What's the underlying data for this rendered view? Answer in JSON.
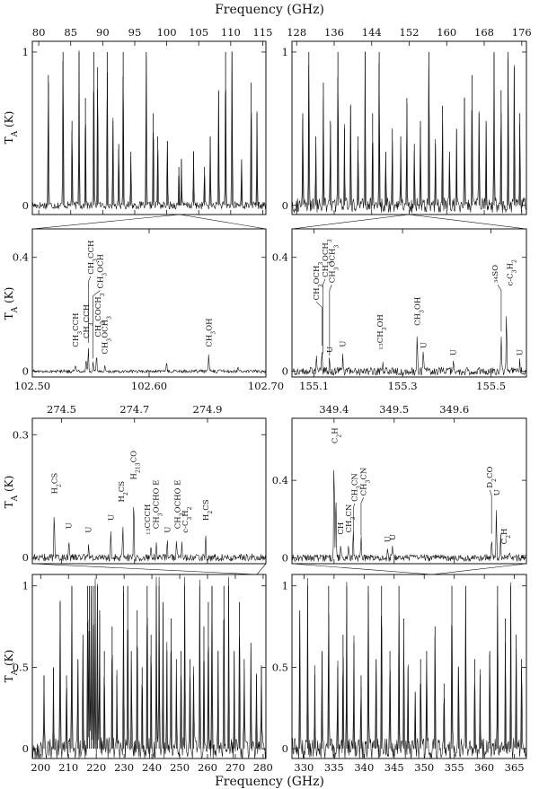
{
  "figure": {
    "top_axis_label": "Frequency (GHz)",
    "bottom_axis_label": "Frequency (GHz)",
    "ylabel": "T",
    "ylabel_sub": "A",
    "ylabel_unit": " (K)"
  },
  "chart_data": [
    {
      "id": "p1",
      "type": "line",
      "title": "",
      "xlabel": "Frequency (GHz)",
      "ylabel": "TA (K)",
      "xlim": [
        79,
        115.5
      ],
      "ylim": [
        -0.06,
        1.07
      ],
      "xticks": [
        80,
        85,
        90,
        95,
        100,
        105,
        110,
        115
      ],
      "yticks": [
        0,
        1
      ],
      "tick_labels_side": "top",
      "peaks": [
        [
          81.5,
          0.85
        ],
        [
          83.8,
          1.0
        ],
        [
          85.2,
          0.55
        ],
        [
          86.3,
          1.0
        ],
        [
          87.3,
          0.7
        ],
        [
          88.6,
          1.0
        ],
        [
          89.2,
          0.9
        ],
        [
          90.7,
          1.0
        ],
        [
          91.6,
          0.55
        ],
        [
          92.5,
          0.4
        ],
        [
          93.2,
          1.0
        ],
        [
          94.4,
          0.35
        ],
        [
          96.8,
          1.0
        ],
        [
          97.9,
          0.6
        ],
        [
          98.6,
          0.45
        ],
        [
          100.1,
          0.42
        ],
        [
          101.9,
          0.25
        ],
        [
          102.3,
          0.3
        ],
        [
          104.2,
          0.35
        ],
        [
          105.9,
          0.25
        ],
        [
          106.8,
          0.45
        ],
        [
          108.1,
          0.75
        ],
        [
          109.2,
          1.0
        ],
        [
          110.2,
          1.0
        ],
        [
          111.7,
          0.3
        ],
        [
          113.2,
          0.8
        ],
        [
          114.1,
          0.6
        ]
      ],
      "noise": 0.025
    },
    {
      "id": "p2",
      "type": "line",
      "title": "",
      "xlabel": "Frequency (GHz)",
      "ylabel": "",
      "xlim": [
        127,
        177
      ],
      "ylim": [
        -0.06,
        1.07
      ],
      "xticks": [
        128,
        136,
        144,
        152,
        160,
        168,
        176
      ],
      "yticks": [
        0,
        1
      ],
      "tick_labels_side": "top",
      "peaks": [
        [
          129.3,
          0.6
        ],
        [
          130.6,
          1.0
        ],
        [
          132.1,
          0.45
        ],
        [
          133.7,
          0.8
        ],
        [
          135.2,
          0.55
        ],
        [
          136.8,
          1.0
        ],
        [
          138.2,
          0.5
        ],
        [
          139.5,
          0.65
        ],
        [
          141.1,
          0.45
        ],
        [
          142.6,
          1.0
        ],
        [
          144.2,
          0.6
        ],
        [
          145.6,
          1.0
        ],
        [
          147.0,
          0.35
        ],
        [
          148.4,
          0.5
        ],
        [
          150.2,
          0.45
        ],
        [
          151.5,
          0.7
        ],
        [
          153.1,
          0.4
        ],
        [
          154.4,
          0.55
        ],
        [
          156.2,
          1.0
        ],
        [
          157.6,
          0.4
        ],
        [
          159.1,
          0.65
        ],
        [
          160.6,
          0.35
        ],
        [
          162.1,
          0.5
        ],
        [
          163.8,
          0.7
        ],
        [
          165.4,
          0.85
        ],
        [
          166.9,
          0.6
        ],
        [
          168.4,
          0.55
        ],
        [
          170.1,
          1.0
        ],
        [
          171.6,
          0.75
        ],
        [
          173.1,
          1.0
        ],
        [
          174.4,
          0.9
        ],
        [
          175.6,
          0.6
        ]
      ],
      "noise": 0.05
    },
    {
      "id": "p3",
      "type": "line",
      "title": "",
      "xlabel": "",
      "ylabel": "TA (K)",
      "xlim": [
        102.5,
        102.7
      ],
      "ylim": [
        -0.02,
        0.5
      ],
      "xticks": [
        102.5,
        102.6,
        102.7
      ],
      "yticks": [
        0,
        0.4
      ],
      "tick_labels_side": "bottom",
      "peaks": [
        [
          102.537,
          0.025
        ],
        [
          102.546,
          0.04
        ],
        [
          102.548,
          0.09
        ],
        [
          102.552,
          0.035
        ],
        [
          102.555,
          0.06
        ],
        [
          102.562,
          0.02
        ],
        [
          102.615,
          0.03
        ],
        [
          102.651,
          0.06
        ],
        [
          102.676,
          0.015
        ]
      ],
      "noise": 0.006,
      "labels": [
        {
          "text": "CH3CCH",
          "x": 102.54,
          "lx": 102.537,
          "ly": 0.085
        },
        {
          "text": "CH3CCH",
          "x": 102.547,
          "lx": 102.546,
          "ly": 0.115
        },
        {
          "text": "CH3CCH",
          "x": 102.548,
          "lx": 102.55,
          "ly": 0.34,
          "leader": true
        },
        {
          "text": "CH3OCH",
          "x": 102.552,
          "lx": 102.558,
          "ly": 0.29,
          "leader": true
        },
        {
          "text": "CH3COCH3",
          "x": 102.555,
          "lx": 102.556,
          "ly": 0.12
        },
        {
          "text": "CH3OCH3",
          "x": 102.562,
          "lx": 102.562,
          "ly": 0.06
        },
        {
          "text": "CH3OH",
          "x": 102.651,
          "lx": 102.651,
          "ly": 0.085
        }
      ]
    },
    {
      "id": "p4",
      "type": "line",
      "title": "",
      "xlabel": "",
      "ylabel": "",
      "xlim": [
        155.05,
        155.58
      ],
      "ylim": [
        -0.02,
        0.5
      ],
      "xticks": [
        155.1,
        155.3,
        155.5
      ],
      "yticks": [
        0,
        0.4
      ],
      "tick_labels_side": "bottom",
      "peaks": [
        [
          155.105,
          0.06
        ],
        [
          155.118,
          0.08
        ],
        [
          155.135,
          0.045
        ],
        [
          155.165,
          0.05
        ],
        [
          155.255,
          0.03
        ],
        [
          155.333,
          0.12
        ],
        [
          155.347,
          0.09
        ],
        [
          155.415,
          0.035
        ],
        [
          155.523,
          0.13
        ],
        [
          155.535,
          0.21
        ],
        [
          155.565,
          0.035
        ]
      ],
      "noise": 0.014,
      "labels": [
        {
          "text": "CH3OCH3",
          "x": 155.118,
          "lx": 155.105,
          "ly": 0.25,
          "leader": true
        },
        {
          "text": "CH3OCH3",
          "x": 155.12,
          "lx": 155.125,
          "ly": 0.33,
          "leader": true
        },
        {
          "text": "CH3OCH3",
          "x": 155.135,
          "lx": 155.14,
          "ly": 0.31,
          "leader": true
        },
        {
          "text": "U",
          "x": 155.135,
          "lx": 155.135,
          "ly": 0.065
        },
        {
          "text": "U",
          "x": 155.165,
          "lx": 155.165,
          "ly": 0.085
        },
        {
          "text": "13CH3OH",
          "x": 155.255,
          "lx": 155.255,
          "ly": 0.075
        },
        {
          "text": "CH3OH",
          "x": 155.333,
          "lx": 155.333,
          "ly": 0.16
        },
        {
          "text": "U",
          "x": 155.347,
          "lx": 155.347,
          "ly": 0.08
        },
        {
          "text": "U",
          "x": 155.415,
          "lx": 155.415,
          "ly": 0.055
        },
        {
          "text": "34SO",
          "x": 155.523,
          "lx": 155.515,
          "ly": 0.31,
          "leader": true
        },
        {
          "text": "c-C3H2",
          "x": 155.535,
          "lx": 155.542,
          "ly": 0.3
        },
        {
          "text": "U",
          "x": 155.565,
          "lx": 155.565,
          "ly": 0.055
        }
      ]
    },
    {
      "id": "p5",
      "type": "line",
      "title": "",
      "xlabel": "",
      "ylabel": "TA (K)",
      "xlim": [
        274.42,
        275.06
      ],
      "ylim": [
        -0.015,
        0.34
      ],
      "xticks": [
        274.5,
        274.7,
        274.9
      ],
      "yticks": [
        0,
        0.3
      ],
      "tick_labels_side": "top",
      "peaks": [
        [
          274.48,
          0.11
        ],
        [
          274.52,
          0.045
        ],
        [
          274.574,
          0.03
        ],
        [
          274.635,
          0.065
        ],
        [
          274.668,
          0.085
        ],
        [
          274.698,
          0.155
        ],
        [
          274.745,
          0.025
        ],
        [
          274.76,
          0.035
        ],
        [
          274.79,
          0.04
        ],
        [
          274.815,
          0.035
        ],
        [
          274.83,
          0.045
        ],
        [
          274.895,
          0.06
        ]
      ],
      "noise": 0.009,
      "labels": [
        {
          "text": "H2CS",
          "x": 274.48,
          "lx": 274.48,
          "ly": 0.155
        },
        {
          "text": "U",
          "x": 274.52,
          "lx": 274.52,
          "ly": 0.07
        },
        {
          "text": "U",
          "x": 274.574,
          "lx": 274.574,
          "ly": 0.06
        },
        {
          "text": "U",
          "x": 274.635,
          "lx": 274.635,
          "ly": 0.09
        },
        {
          "text": "H2CS",
          "x": 274.668,
          "lx": 274.664,
          "ly": 0.135
        },
        {
          "text": "H213CO",
          "x": 274.698,
          "lx": 274.697,
          "ly": 0.19
        },
        {
          "text": "13CCCH",
          "x": 274.745,
          "lx": 274.742,
          "ly": 0.055
        },
        {
          "text": "CH3OCHO E",
          "x": 274.76,
          "lx": 274.758,
          "ly": 0.07
        },
        {
          "text": "U",
          "x": 274.79,
          "lx": 274.79,
          "ly": 0.06
        },
        {
          "text": "CH3OCHO E",
          "x": 274.815,
          "lx": 274.818,
          "ly": 0.07
        },
        {
          "text": "c-C3H2",
          "x": 274.83,
          "lx": 274.838,
          "ly": 0.06
        },
        {
          "text": "H2CS",
          "x": 274.895,
          "lx": 274.895,
          "ly": 0.09
        }
      ]
    },
    {
      "id": "p6",
      "type": "line",
      "title": "",
      "xlabel": "",
      "ylabel": "",
      "xlim": [
        349.33,
        349.72
      ],
      "ylim": [
        -0.03,
        0.72
      ],
      "xticks": [
        349.4,
        349.5,
        349.6
      ],
      "yticks": [
        0,
        0.4
      ],
      "tick_labels_side": "top",
      "peaks": [
        [
          349.4,
          0.55
        ],
        [
          349.403,
          0.35
        ],
        [
          349.411,
          0.06
        ],
        [
          349.424,
          0.07
        ],
        [
          349.432,
          0.13
        ],
        [
          349.445,
          0.1
        ],
        [
          349.489,
          0.04
        ],
        [
          349.497,
          0.05
        ],
        [
          349.662,
          0.11
        ],
        [
          349.67,
          0.26
        ],
        [
          349.677,
          0.12
        ],
        [
          349.692,
          0.035
        ]
      ],
      "noise": 0.018,
      "labels": [
        {
          "text": "C2H",
          "x": 349.4,
          "lx": 349.401,
          "ly": 0.59
        },
        {
          "text": "CH",
          "x": 349.411,
          "lx": 349.411,
          "ly": 0.12
        },
        {
          "text": "CH3CN",
          "x": 349.424,
          "lx": 349.424,
          "ly": 0.13
        },
        {
          "text": "CH3CN",
          "x": 349.432,
          "lx": 349.434,
          "ly": 0.29,
          "leader": true
        },
        {
          "text": "CH3CN",
          "x": 349.445,
          "lx": 349.449,
          "ly": 0.32,
          "leader": true
        },
        {
          "text": "U",
          "x": 349.489,
          "lx": 349.489,
          "ly": 0.08
        },
        {
          "text": "U",
          "x": 349.497,
          "lx": 349.497,
          "ly": 0.09
        },
        {
          "text": "D2CO",
          "x": 349.662,
          "lx": 349.659,
          "ly": 0.36,
          "leader": true
        },
        {
          "text": "U",
          "x": 349.67,
          "lx": 349.671,
          "ly": 0.32
        },
        {
          "text": "C2H",
          "x": 349.677,
          "lx": 349.683,
          "ly": 0.07
        }
      ]
    },
    {
      "id": "p7",
      "type": "line",
      "title": "",
      "xlabel": "Frequency (GHz)",
      "ylabel": "TA (K)",
      "xlim": [
        197,
        281
      ],
      "ylim": [
        -0.06,
        1.07
      ],
      "xticks": [
        200,
        210,
        220,
        230,
        240,
        250,
        260,
        270,
        280
      ],
      "yticks": [
        0,
        0.5,
        1
      ],
      "tick_labels_side": "bottom",
      "peaks": [
        [
          201.2,
          0.45
        ],
        [
          204.6,
          0.5
        ],
        [
          207.0,
          0.9
        ],
        [
          209.3,
          0.45
        ],
        [
          211.2,
          1.0
        ],
        [
          213.4,
          0.55
        ],
        [
          215.2,
          0.7
        ],
        [
          216.9,
          1.0
        ],
        [
          217.5,
          1.0
        ],
        [
          218.2,
          1.0
        ],
        [
          218.9,
          1.0
        ],
        [
          219.6,
          1.0
        ],
        [
          220.4,
          1.0
        ],
        [
          221.2,
          0.85
        ],
        [
          222.9,
          0.6
        ],
        [
          225.7,
          0.75
        ],
        [
          227.4,
          0.45
        ],
        [
          229.8,
          1.0
        ],
        [
          231.3,
          1.0
        ],
        [
          232.6,
          0.6
        ],
        [
          234.7,
          0.85
        ],
        [
          236.5,
          0.5
        ],
        [
          238.3,
          1.0
        ],
        [
          239.7,
          0.7
        ],
        [
          241.6,
          1.0
        ],
        [
          242.6,
          1.0
        ],
        [
          244.0,
          0.9
        ],
        [
          245.4,
          0.6
        ],
        [
          246.9,
          0.8
        ],
        [
          248.8,
          0.55
        ],
        [
          250.5,
          0.6
        ],
        [
          251.8,
          1.0
        ],
        [
          253.7,
          0.55
        ],
        [
          255.0,
          0.45
        ],
        [
          257.2,
          1.0
        ],
        [
          258.7,
          0.75
        ],
        [
          260.3,
          0.9
        ],
        [
          261.6,
          1.0
        ],
        [
          263.8,
          0.6
        ],
        [
          265.9,
          1.0
        ],
        [
          267.6,
          1.0
        ],
        [
          269.6,
          0.6
        ],
        [
          271.5,
          0.9
        ],
        [
          273.2,
          0.55
        ],
        [
          275.6,
          0.65
        ],
        [
          277.6,
          0.45
        ],
        [
          279.4,
          0.5
        ]
      ],
      "noise": 0.07
    },
    {
      "id": "p8",
      "type": "line",
      "title": "",
      "xlabel": "Frequency (GHz)",
      "ylabel": "",
      "xlim": [
        328,
        367
      ],
      "ylim": [
        -0.06,
        1.07
      ],
      "xticks": [
        330,
        335,
        340,
        345,
        350,
        355,
        360,
        365
      ],
      "yticks": [
        0,
        0.5,
        1
      ],
      "tick_labels_side": "bottom",
      "peaks": [
        [
          329.3,
          0.85
        ],
        [
          330.6,
          1.0
        ],
        [
          331.8,
          0.45
        ],
        [
          333.0,
          0.6
        ],
        [
          334.1,
          1.0
        ],
        [
          335.6,
          0.5
        ],
        [
          336.5,
          0.7
        ],
        [
          337.1,
          1.0
        ],
        [
          338.3,
          0.65
        ],
        [
          339.5,
          0.45
        ],
        [
          340.7,
          1.0
        ],
        [
          342.0,
          0.55
        ],
        [
          342.9,
          1.0
        ],
        [
          344.3,
          0.6
        ],
        [
          345.8,
          1.0
        ],
        [
          346.6,
          0.8
        ],
        [
          347.3,
          0.5
        ],
        [
          348.5,
          0.35
        ],
        [
          349.4,
          0.55
        ],
        [
          350.4,
          0.6
        ],
        [
          351.8,
          0.75
        ],
        [
          353.3,
          0.4
        ],
        [
          354.6,
          1.0
        ],
        [
          355.7,
          0.5
        ],
        [
          356.9,
          1.0
        ],
        [
          358.4,
          0.55
        ],
        [
          359.3,
          0.45
        ],
        [
          360.9,
          0.6
        ],
        [
          362.2,
          1.0
        ],
        [
          363.5,
          0.8
        ],
        [
          364.4,
          1.0
        ],
        [
          365.3,
          0.7
        ],
        [
          366.2,
          0.55
        ]
      ],
      "noise": 0.065
    }
  ]
}
